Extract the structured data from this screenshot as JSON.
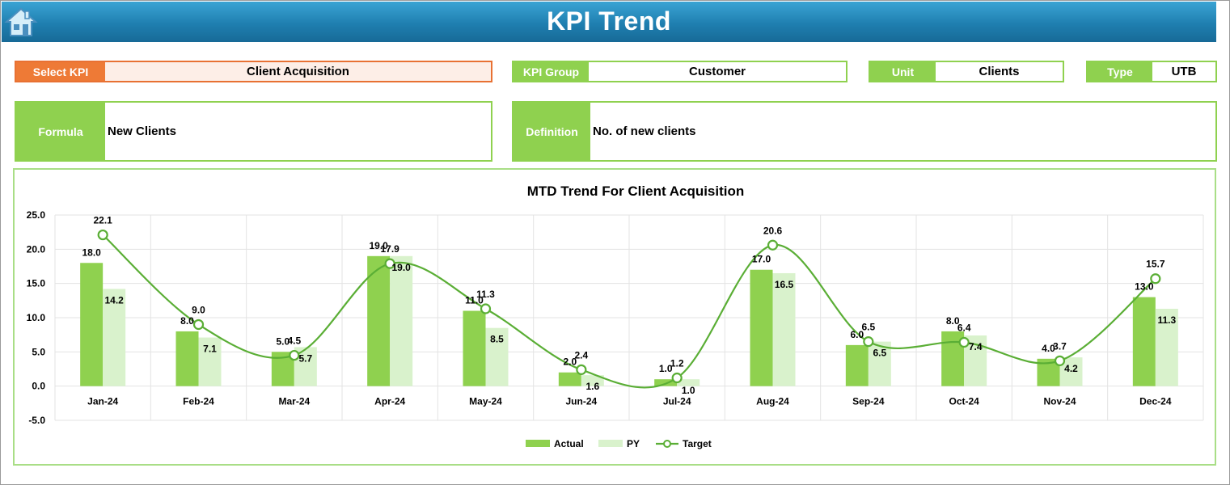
{
  "header": {
    "title": "KPI Trend"
  },
  "fields": {
    "select_kpi": {
      "label": "Select KPI",
      "value": "Client Acquisition"
    },
    "kpi_group": {
      "label": "KPI Group",
      "value": "Customer"
    },
    "unit": {
      "label": "Unit",
      "value": "Clients"
    },
    "type": {
      "label": "Type",
      "value": "UTB"
    },
    "formula": {
      "label": "Formula",
      "value": "New Clients"
    },
    "definition": {
      "label": "Definition",
      "value": "No. of new clients"
    }
  },
  "colors": {
    "actual": "#8fd14f",
    "py": "#d9f2cc",
    "target": "#5aae35",
    "header": "#1f7fb0",
    "accent_orange": "#ee7a36"
  },
  "chart_data": {
    "type": "bar",
    "title": "MTD Trend For Client Acquisition",
    "categories": [
      "Jan-24",
      "Feb-24",
      "Mar-24",
      "Apr-24",
      "May-24",
      "Jun-24",
      "Jul-24",
      "Aug-24",
      "Sep-24",
      "Oct-24",
      "Nov-24",
      "Dec-24"
    ],
    "series": [
      {
        "name": "Actual",
        "kind": "bar",
        "values": [
          18.0,
          8.0,
          5.0,
          19.0,
          11.0,
          2.0,
          1.0,
          17.0,
          6.0,
          8.0,
          4.0,
          13.0
        ]
      },
      {
        "name": "PY",
        "kind": "bar",
        "values": [
          14.2,
          7.1,
          5.7,
          19.0,
          8.5,
          1.6,
          1.0,
          16.5,
          6.5,
          7.4,
          4.2,
          11.3
        ]
      },
      {
        "name": "Target",
        "kind": "line",
        "values": [
          22.1,
          9.0,
          4.5,
          17.9,
          11.3,
          2.4,
          1.2,
          20.6,
          6.5,
          6.4,
          3.7,
          15.7
        ]
      }
    ],
    "ylim": [
      -5.0,
      25.0
    ],
    "yticks": [
      "25.0",
      "20.0",
      "15.0",
      "10.0",
      "5.0",
      "0.0",
      "-5.0"
    ],
    "legend": "bottom",
    "grid": true
  }
}
